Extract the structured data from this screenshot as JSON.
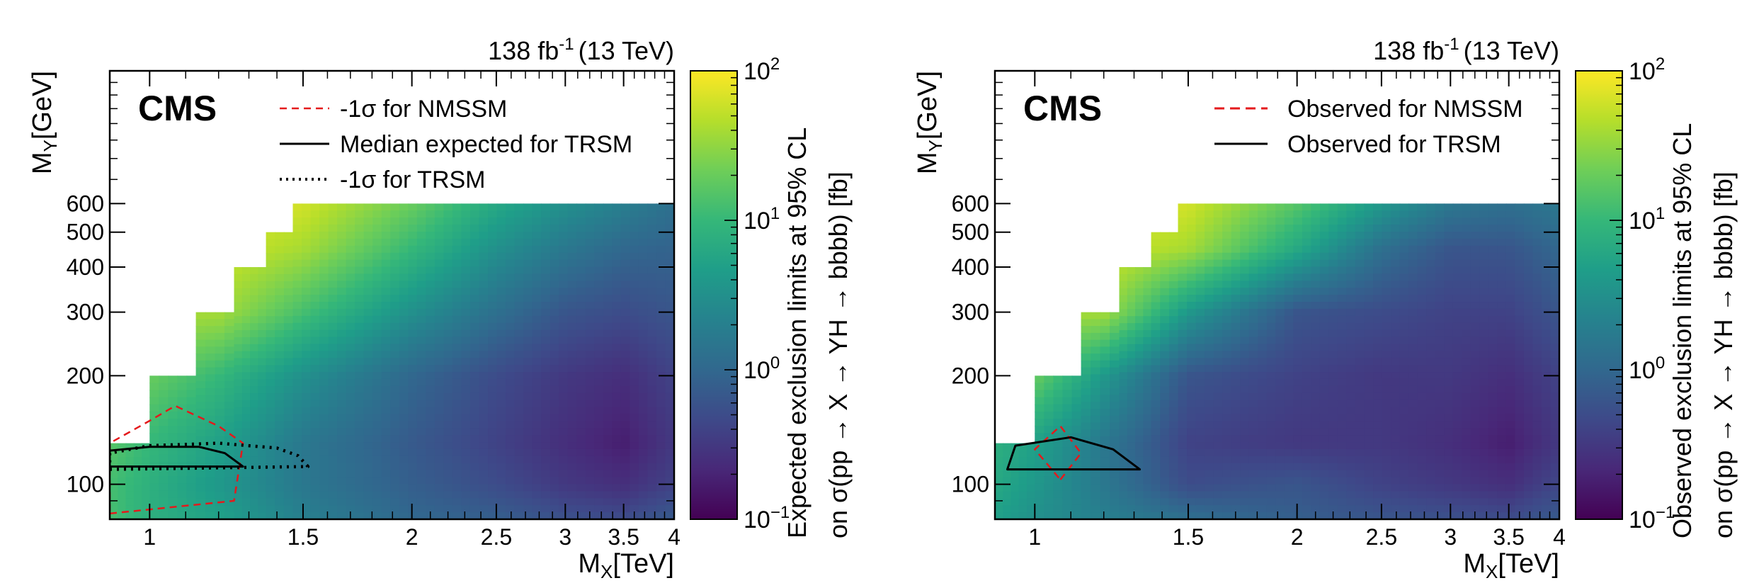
{
  "colormap": [
    "#440154",
    "#482878",
    "#3e4989",
    "#31688e",
    "#26828e",
    "#1f9e89",
    "#35b779",
    "#6ece58",
    "#b5de2b",
    "#fde725"
  ],
  "chart_data": [
    {
      "type": "heatmap",
      "experiment": "CMS",
      "lumi_label": "138 fb",
      "lumi_exp": "-1",
      "energy": "(13 TeV)",
      "xlabel_main": "M",
      "xlabel_sub": "X",
      "xlabel_unit": "[TeV]",
      "ylabel_main": "M",
      "ylabel_sub": "Y",
      "ylabel_unit": "[GeV]",
      "xlim": [
        0.9,
        4.0
      ],
      "ylim": [
        80,
        1400
      ],
      "x_scale": "log",
      "y_scale": "log",
      "x_ticks": [
        {
          "value": 1,
          "label": "1"
        },
        {
          "value": 1.5,
          "label": "1.5"
        },
        {
          "value": 2,
          "label": "2"
        },
        {
          "value": 2.5,
          "label": "2.5"
        },
        {
          "value": 3,
          "label": "3"
        },
        {
          "value": 3.5,
          "label": "3.5"
        },
        {
          "value": 4,
          "label": "4"
        }
      ],
      "y_ticks": [
        {
          "value": 100,
          "label": "100"
        },
        {
          "value": 200,
          "label": "200"
        },
        {
          "value": 300,
          "label": "300"
        },
        {
          "value": 400,
          "label": "400"
        },
        {
          "value": 500,
          "label": "500"
        },
        {
          "value": 600,
          "label": "600"
        }
      ],
      "colorbar": {
        "label_line1": "Expected exclusion limits at 95% CL",
        "label_line2": "on σ(pp → X → YH → bbbb) [fb]",
        "zlim_log10": [
          -1,
          2
        ],
        "ticks": [
          {
            "base": "10",
            "exp": "2",
            "log": 2
          },
          {
            "base": "10",
            "exp": "1",
            "log": 1
          },
          {
            "base": "10",
            "exp": "0",
            "log": 0
          },
          {
            "base": "10",
            "exp": "−1",
            "log": -1
          }
        ]
      },
      "legend_position": "top-right",
      "legend": [
        {
          "label": "-1σ for NMSSM",
          "style": "dashed-thin",
          "color": "#e41a1c"
        },
        {
          "label": "Median expected for TRSM",
          "style": "solid",
          "color": "#000000"
        },
        {
          "label": "-1σ for TRSM",
          "style": "dotted",
          "color": "#000000"
        }
      ],
      "coverage_steps": [
        {
          "x_from": 0.9,
          "x_to": 1.0,
          "y_max": 130
        },
        {
          "x_from": 1.0,
          "x_to": 1.13,
          "y_max": 200
        },
        {
          "x_from": 1.13,
          "x_to": 1.25,
          "y_max": 300
        },
        {
          "x_from": 1.25,
          "x_to": 1.36,
          "y_max": 400
        },
        {
          "x_from": 1.36,
          "x_to": 1.46,
          "y_max": 500
        },
        {
          "x_from": 1.46,
          "x_to": 4.0,
          "y_max": 600
        }
      ],
      "heat_grid": {
        "x": [
          0.9,
          1.0,
          1.2,
          1.5,
          2.0,
          2.5,
          3.0,
          3.5,
          4.0
        ],
        "y": [
          80,
          100,
          130,
          200,
          300,
          450,
          600
        ],
        "log10_limits": [
          [
            1.1,
            0.9,
            0.7,
            0.3,
            0.0,
            -0.1,
            -0.25,
            -0.3,
            -0.15
          ],
          [
            1.1,
            0.9,
            0.6,
            0.2,
            -0.1,
            -0.3,
            -0.5,
            -0.6,
            -0.4
          ],
          [
            1.2,
            1.0,
            0.7,
            0.2,
            -0.15,
            -0.4,
            -0.6,
            -0.75,
            -0.5
          ],
          [
            1.3,
            1.3,
            1.0,
            0.5,
            0.0,
            -0.3,
            -0.5,
            -0.6,
            -0.4
          ],
          [
            1.6,
            1.6,
            1.6,
            1.1,
            0.5,
            0.1,
            -0.2,
            -0.3,
            -0.2
          ],
          [
            1.8,
            1.8,
            1.8,
            1.6,
            1.0,
            0.5,
            0.2,
            0.0,
            -0.05
          ],
          [
            1.9,
            1.9,
            1.9,
            1.8,
            1.3,
            0.8,
            0.5,
            0.3,
            0.1
          ]
        ]
      },
      "contours": [
        {
          "name": "nmssm-minus1sigma-contour",
          "style": "dashed-thin",
          "color": "#e41a1c",
          "closed": true,
          "points": [
            [
              0.9,
              83
            ],
            [
              1.25,
              90
            ],
            [
              1.28,
              130
            ],
            [
              1.2,
              145
            ],
            [
              1.07,
              165
            ],
            [
              1.0,
              150
            ],
            [
              0.9,
              130
            ]
          ]
        },
        {
          "name": "trsm-median-contour",
          "style": "solid",
          "color": "#000000",
          "closed": true,
          "points": [
            [
              0.9,
              112
            ],
            [
              1.28,
              112
            ],
            [
              1.22,
              122
            ],
            [
              1.14,
              127
            ],
            [
              1.0,
              127
            ],
            [
              0.9,
              124
            ]
          ]
        },
        {
          "name": "trsm-minus1sigma-contour",
          "style": "dotted",
          "color": "#000000",
          "closed": true,
          "points": [
            [
              0.9,
              110
            ],
            [
              1.52,
              112
            ],
            [
              1.48,
              120
            ],
            [
              1.4,
              126
            ],
            [
              1.2,
              130
            ],
            [
              1.0,
              128
            ],
            [
              0.9,
              122
            ]
          ]
        }
      ]
    },
    {
      "type": "heatmap",
      "experiment": "CMS",
      "lumi_label": "138 fb",
      "lumi_exp": "-1",
      "energy": "(13 TeV)",
      "xlabel_main": "M",
      "xlabel_sub": "X",
      "xlabel_unit": "[TeV]",
      "ylabel_main": "M",
      "ylabel_sub": "Y",
      "ylabel_unit": "[GeV]",
      "xlim": [
        0.9,
        4.0
      ],
      "ylim": [
        80,
        1400
      ],
      "x_scale": "log",
      "y_scale": "log",
      "x_ticks": [
        {
          "value": 1,
          "label": "1"
        },
        {
          "value": 1.5,
          "label": "1.5"
        },
        {
          "value": 2,
          "label": "2"
        },
        {
          "value": 2.5,
          "label": "2.5"
        },
        {
          "value": 3,
          "label": "3"
        },
        {
          "value": 3.5,
          "label": "3.5"
        },
        {
          "value": 4,
          "label": "4"
        }
      ],
      "y_ticks": [
        {
          "value": 100,
          "label": "100"
        },
        {
          "value": 200,
          "label": "200"
        },
        {
          "value": 300,
          "label": "300"
        },
        {
          "value": 400,
          "label": "400"
        },
        {
          "value": 500,
          "label": "500"
        },
        {
          "value": 600,
          "label": "600"
        }
      ],
      "colorbar": {
        "label_line1": "Observed exclusion limits at 95% CL",
        "label_line2": "on σ(pp → X → YH → bbbb) [fb]",
        "zlim_log10": [
          -1,
          2
        ],
        "ticks": [
          {
            "base": "10",
            "exp": "2",
            "log": 2
          },
          {
            "base": "10",
            "exp": "1",
            "log": 1
          },
          {
            "base": "10",
            "exp": "0",
            "log": 0
          },
          {
            "base": "10",
            "exp": "−1",
            "log": -1
          }
        ]
      },
      "legend_position": "top-right",
      "legend": [
        {
          "label": "Observed for NMSSM",
          "style": "dashed",
          "color": "#e41a1c"
        },
        {
          "label": "Observed for TRSM",
          "style": "solid",
          "color": "#000000"
        }
      ],
      "coverage_steps": [
        {
          "x_from": 0.9,
          "x_to": 1.0,
          "y_max": 130
        },
        {
          "x_from": 1.0,
          "x_to": 1.13,
          "y_max": 200
        },
        {
          "x_from": 1.13,
          "x_to": 1.25,
          "y_max": 300
        },
        {
          "x_from": 1.25,
          "x_to": 1.36,
          "y_max": 400
        },
        {
          "x_from": 1.36,
          "x_to": 1.46,
          "y_max": 500
        },
        {
          "x_from": 1.46,
          "x_to": 4.0,
          "y_max": 600
        }
      ],
      "heat_grid": {
        "x": [
          0.9,
          1.0,
          1.2,
          1.5,
          2.0,
          2.5,
          3.0,
          3.5,
          4.0
        ],
        "y": [
          80,
          100,
          130,
          200,
          300,
          450,
          600
        ],
        "log10_limits": [
          [
            0.7,
            0.5,
            0.3,
            0.1,
            -0.1,
            -0.2,
            -0.25,
            -0.3,
            -0.15
          ],
          [
            0.8,
            0.6,
            0.2,
            -0.3,
            -0.2,
            -0.4,
            -0.5,
            -0.6,
            -0.35
          ],
          [
            0.9,
            0.7,
            0.2,
            -0.4,
            -0.5,
            -0.5,
            -0.6,
            -0.75,
            -0.5
          ],
          [
            1.3,
            1.3,
            0.6,
            -0.2,
            -0.4,
            -0.5,
            -0.5,
            -0.6,
            -0.4
          ],
          [
            1.6,
            1.6,
            1.6,
            0.6,
            -0.2,
            -0.3,
            -0.4,
            -0.4,
            -0.2
          ],
          [
            1.8,
            1.8,
            1.8,
            1.6,
            0.8,
            0.1,
            -0.2,
            -0.2,
            0.0
          ],
          [
            1.9,
            1.9,
            1.9,
            1.8,
            1.2,
            0.6,
            0.2,
            0.1,
            0.2
          ]
        ]
      },
      "contours": [
        {
          "name": "nmssm-observed-contour",
          "style": "dashed-thin",
          "color": "#e41a1c",
          "closed": true,
          "points": [
            [
              1.07,
              103
            ],
            [
              1.13,
              122
            ],
            [
              1.07,
              145
            ],
            [
              1.0,
              125
            ]
          ]
        },
        {
          "name": "trsm-observed-contour",
          "style": "solid",
          "color": "#000000",
          "closed": true,
          "points": [
            [
              0.93,
              110
            ],
            [
              1.32,
              110
            ],
            [
              1.23,
              125
            ],
            [
              1.1,
              135
            ],
            [
              0.95,
              128
            ]
          ]
        }
      ]
    }
  ]
}
